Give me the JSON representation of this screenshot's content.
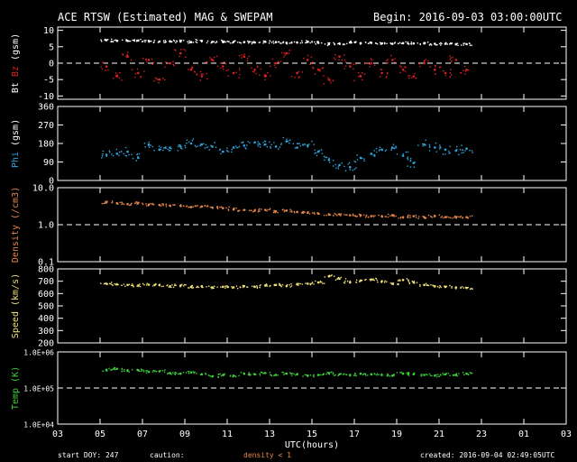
{
  "header": {
    "title": "ACE RTSW (Estimated) MAG & SWEPAM",
    "begin": "Begin: 2016-09-03 03:00:00UTC"
  },
  "footer": {
    "start_doy": "start DOY: 247",
    "caution_label": "caution:",
    "caution_value": "density < 1",
    "created": "created: 2016-09-04 02:49:05UTC"
  },
  "colors": {
    "bt": "#ffffff",
    "bz": "#dd2020",
    "phi": "#2ca5dc",
    "density": "#e8864a",
    "speed": "#f0e07a",
    "temp": "#3ccf3c",
    "frame": "#ffffff",
    "dashed": "#ffffff"
  },
  "chart_data": [
    {
      "type": "scatter",
      "panel": "mag",
      "ylabel_parts": [
        "Bt",
        "Bz",
        "(gsm)"
      ],
      "yticks": [
        "10",
        "5",
        "0",
        "-5",
        "-10"
      ],
      "ylim": [
        -11,
        11
      ],
      "dashed_ref": 0,
      "x": [
        5.3,
        5.8,
        6.3,
        6.8,
        7.3,
        7.8,
        8.3,
        8.8,
        9.3,
        9.8,
        10.3,
        10.8,
        11.3,
        11.8,
        12.3,
        12.8,
        13.3,
        13.8,
        14.3,
        14.8,
        15.3,
        15.8,
        16.3,
        16.8,
        17.3,
        17.8,
        18.3,
        18.8,
        19.3,
        19.8,
        20.3,
        20.8,
        21.3,
        21.8,
        22.3
      ],
      "series": [
        {
          "name": "Bt",
          "color_key": "bt",
          "values": [
            7.0,
            6.8,
            6.8,
            6.9,
            6.8,
            6.6,
            6.7,
            6.6,
            6.4,
            6.8,
            6.5,
            6.6,
            6.5,
            6.4,
            6.3,
            6.5,
            6.4,
            6.2,
            6.3,
            6.5,
            6.2,
            5.8,
            6.0,
            6.3,
            6.1,
            6.2,
            6.0,
            5.9,
            6.1,
            6.0,
            6.0,
            5.9,
            5.9,
            5.8,
            5.8
          ]
        },
        {
          "name": "Bz",
          "color_key": "bz",
          "values": [
            -1,
            -4,
            2,
            -3,
            1,
            -5,
            0,
            3,
            -2,
            -4,
            1,
            -1,
            -3,
            2,
            -2,
            -4,
            0,
            3,
            -3,
            1,
            -2,
            -5,
            2,
            -1,
            -4,
            0,
            -3,
            1,
            -2,
            -4,
            0,
            -2,
            -3,
            1,
            -2
          ]
        }
      ]
    },
    {
      "type": "scatter",
      "panel": "phi",
      "ylabel_parts": [
        "Phi",
        "(gsm)"
      ],
      "yticks": [
        "360",
        "270",
        "180",
        "90",
        "0"
      ],
      "ylim": [
        0,
        360
      ],
      "color_key": "phi",
      "x": [
        5.3,
        5.8,
        6.3,
        6.8,
        7.3,
        7.8,
        8.3,
        8.8,
        9.3,
        9.8,
        10.3,
        10.8,
        11.3,
        11.8,
        12.3,
        12.8,
        13.3,
        13.8,
        14.3,
        14.8,
        15.3,
        15.8,
        16.3,
        16.8,
        17.3,
        17.8,
        18.3,
        18.8,
        19.3,
        19.8,
        20.3,
        20.8,
        21.3,
        21.8,
        22.3
      ],
      "values": [
        125,
        130,
        140,
        110,
        175,
        150,
        160,
        165,
        180,
        175,
        165,
        140,
        160,
        170,
        185,
        175,
        165,
        190,
        160,
        170,
        140,
        100,
        75,
        65,
        110,
        130,
        150,
        160,
        120,
        85,
        175,
        160,
        150,
        145,
        155
      ]
    },
    {
      "type": "scatter",
      "panel": "density",
      "ylabel": "Density (/cm3)",
      "yticks": [
        "10.0",
        "1.0",
        "0.1"
      ],
      "yscale": "log",
      "ylim": [
        0.1,
        10
      ],
      "dashed_ref": 1,
      "color_key": "density",
      "x": [
        5.3,
        5.8,
        6.3,
        6.8,
        7.3,
        7.8,
        8.3,
        8.8,
        9.3,
        9.8,
        10.3,
        10.8,
        11.3,
        11.8,
        12.3,
        12.8,
        13.3,
        13.8,
        14.3,
        14.8,
        15.3,
        15.8,
        16.3,
        16.8,
        17.3,
        17.8,
        18.3,
        18.8,
        19.3,
        19.8,
        20.3,
        20.8,
        21.3,
        21.8,
        22.3
      ],
      "values": [
        4.0,
        3.8,
        3.6,
        3.9,
        3.5,
        3.4,
        3.3,
        3.2,
        3.0,
        3.1,
        2.9,
        2.8,
        2.6,
        2.5,
        2.4,
        2.5,
        2.3,
        2.4,
        2.2,
        2.1,
        2.0,
        1.9,
        1.9,
        1.8,
        1.8,
        1.7,
        1.7,
        1.8,
        1.6,
        1.7,
        1.6,
        1.7,
        1.6,
        1.6,
        1.6
      ]
    },
    {
      "type": "scatter",
      "panel": "speed",
      "ylabel": "Speed (km/s)",
      "yticks": [
        "800",
        "700",
        "600",
        "500",
        "400",
        "300",
        "200"
      ],
      "ylim": [
        200,
        800
      ],
      "color_key": "speed",
      "x": [
        5.3,
        5.8,
        6.3,
        6.8,
        7.3,
        7.8,
        8.3,
        8.8,
        9.3,
        9.8,
        10.3,
        10.8,
        11.3,
        11.8,
        12.3,
        12.8,
        13.3,
        13.8,
        14.3,
        14.8,
        15.3,
        15.8,
        16.3,
        16.8,
        17.3,
        17.8,
        18.3,
        18.8,
        19.3,
        19.8,
        20.3,
        20.8,
        21.3,
        21.8,
        22.3
      ],
      "values": [
        680,
        675,
        670,
        665,
        672,
        668,
        660,
        665,
        655,
        660,
        650,
        655,
        650,
        660,
        655,
        665,
        670,
        660,
        675,
        680,
        690,
        740,
        720,
        690,
        705,
        715,
        700,
        680,
        710,
        690,
        670,
        660,
        655,
        650,
        645
      ]
    },
    {
      "type": "scatter",
      "panel": "temp",
      "ylabel": "Temp (K)",
      "yticks": [
        "1.0E+06",
        "1.0E+05",
        "1.0E+04"
      ],
      "yscale": "log",
      "ylim": [
        10000,
        1000000
      ],
      "dashed_ref": 100000,
      "color_key": "temp",
      "x": [
        5.3,
        5.8,
        6.3,
        6.8,
        7.3,
        7.8,
        8.3,
        8.8,
        9.3,
        9.8,
        10.3,
        10.8,
        11.3,
        11.8,
        12.3,
        12.8,
        13.3,
        13.8,
        14.3,
        14.8,
        15.3,
        15.8,
        16.3,
        16.8,
        17.3,
        17.8,
        18.3,
        18.8,
        19.3,
        19.8,
        20.3,
        20.8,
        21.3,
        21.8,
        22.3
      ],
      "values": [
        320000,
        340000,
        300000,
        310000,
        280000,
        290000,
        260000,
        250000,
        270000,
        240000,
        210000,
        230000,
        220000,
        250000,
        240000,
        260000,
        230000,
        250000,
        240000,
        220000,
        230000,
        260000,
        240000,
        230000,
        250000,
        240000,
        230000,
        220000,
        250000,
        240000,
        230000,
        220000,
        240000,
        230000,
        250000
      ]
    }
  ],
  "xaxis": {
    "ticks": [
      "03",
      "05",
      "07",
      "09",
      "11",
      "13",
      "15",
      "17",
      "19",
      "21",
      "23",
      "01",
      "03"
    ],
    "tick_hours": [
      3,
      5,
      7,
      9,
      11,
      13,
      15,
      17,
      19,
      21,
      23,
      25,
      27
    ],
    "range": [
      3,
      27
    ],
    "label": "UTC(hours)"
  }
}
